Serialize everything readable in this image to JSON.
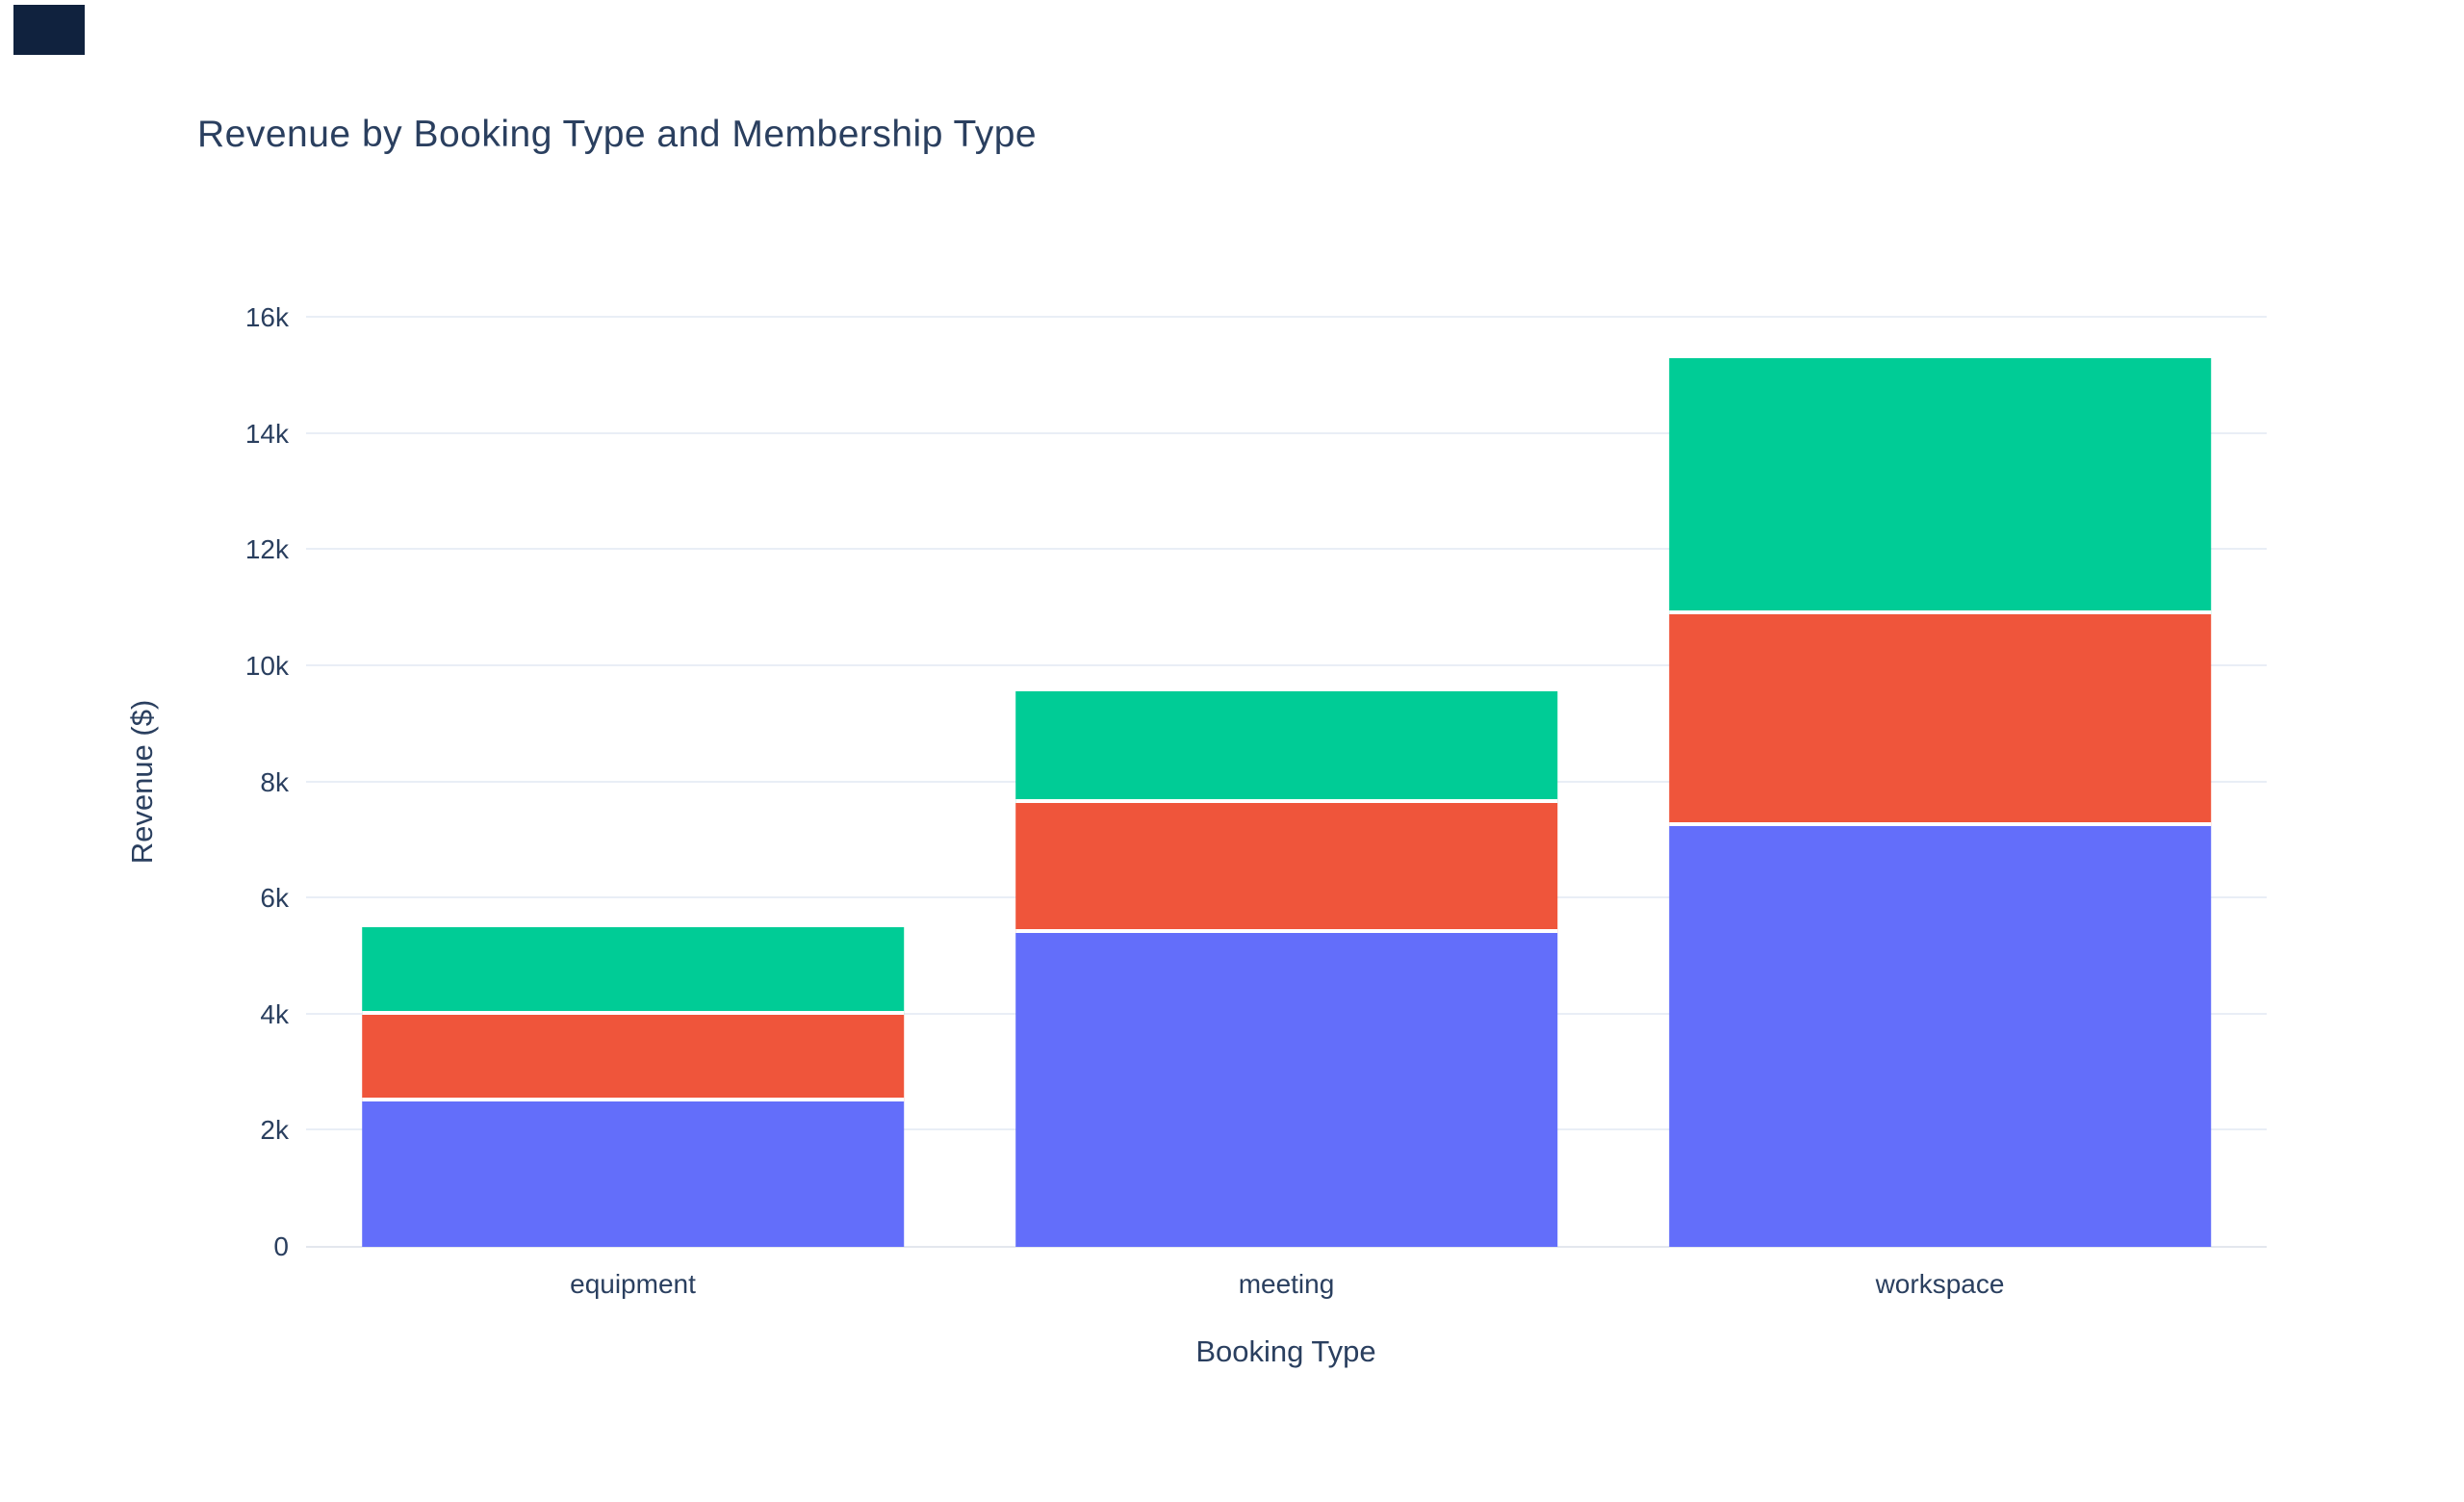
{
  "title": "Revenue by Booking Type and Membership Type",
  "chart_data": {
    "type": "bar",
    "stacked": true,
    "orientation": "vertical",
    "title": "Revenue by Booking Type and Membership Type",
    "xlabel": "Booking Type",
    "ylabel": "Revenue ($)",
    "categories": [
      "equipment",
      "meeting",
      "workspace"
    ],
    "series": [
      {
        "name": "blue-bottom-segment",
        "color": "#636EFA",
        "values": [
          2500,
          5400,
          7250
        ]
      },
      {
        "name": "red-middle-segment",
        "color": "#EF553B",
        "values": [
          1500,
          2240,
          3650
        ]
      },
      {
        "name": "green-top-segment",
        "color": "#00CC96",
        "values": [
          1500,
          1930,
          4400
        ]
      }
    ],
    "stack_totals": [
      5500,
      9570,
      15300
    ],
    "ylim": [
      0,
      16000
    ],
    "ytick_step": 2000,
    "ytick_labels": [
      "0",
      "2k",
      "4k",
      "6k",
      "8k",
      "10k",
      "12k",
      "14k",
      "16k"
    ],
    "grid": true,
    "legend": "none"
  },
  "colors": {
    "title_text": "#2a3f5f",
    "axis_text": "#2a3f5f",
    "gridline": "#e9eef6",
    "zeroline": "#e3e7ee",
    "background": "#ffffff",
    "corner_block": "#10223e",
    "segment_separator": "#ffffff"
  }
}
